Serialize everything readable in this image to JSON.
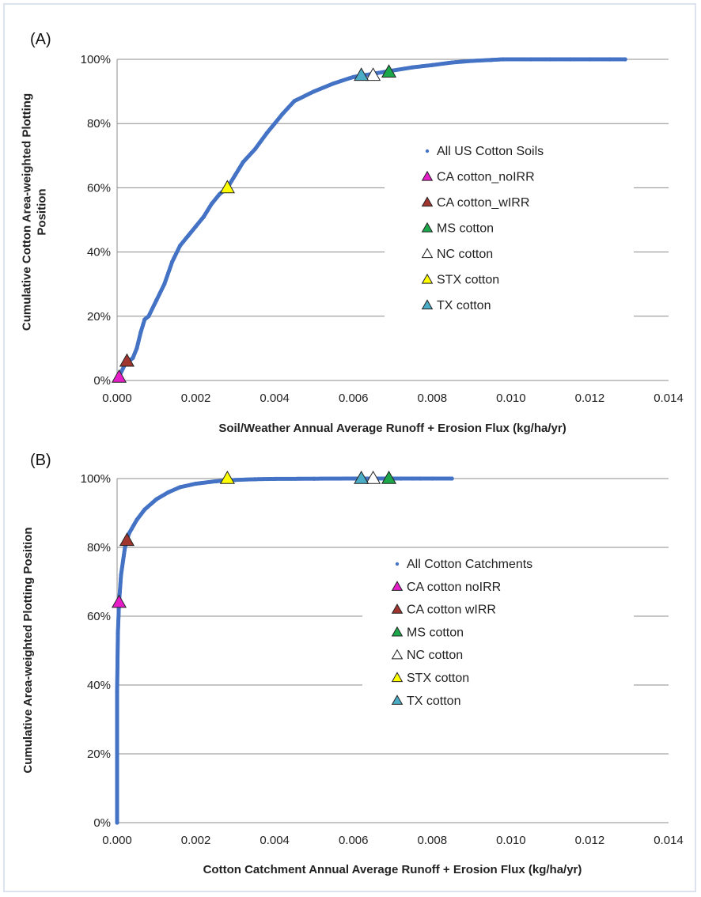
{
  "figure": {
    "panels": [
      "(A)",
      "(B)"
    ]
  },
  "chart_data": [
    {
      "panel_label": "(A)",
      "type": "scatter",
      "xlabel": "Soil/Weather Annual Average Runoff + Erosion Flux (kg/ha/yr)",
      "ylabel": "Cumulative Cotton Area-weighted Plotting Position",
      "xlim": [
        0,
        0.014
      ],
      "ylim": [
        0,
        1
      ],
      "x_ticks": [
        "0.000",
        "0.002",
        "0.004",
        "0.006",
        "0.008",
        "0.010",
        "0.012",
        "0.014"
      ],
      "y_ticks": [
        "0%",
        "20%",
        "40%",
        "60%",
        "80%",
        "100%"
      ],
      "grid": "horizontal",
      "legend": "right",
      "series": [
        {
          "name": "All US Cotton Soils",
          "marker": "dot",
          "color": "#4472c4",
          "x": [
            0.0,
            0.0002,
            0.0004,
            0.0005,
            0.0006,
            0.0007,
            0.0008,
            0.001,
            0.0012,
            0.0014,
            0.0016,
            0.0018,
            0.002,
            0.0022,
            0.0024,
            0.0026,
            0.0028,
            0.003,
            0.0032,
            0.0035,
            0.0038,
            0.004,
            0.0042,
            0.0045,
            0.005,
            0.0055,
            0.006,
            0.0065,
            0.007,
            0.0075,
            0.008,
            0.0085,
            0.009,
            0.0095,
            0.0098,
            0.0105,
            0.011,
            0.0115,
            0.012,
            0.0125,
            0.0129
          ],
          "y": [
            0.0,
            0.05,
            0.07,
            0.1,
            0.15,
            0.19,
            0.2,
            0.25,
            0.3,
            0.37,
            0.42,
            0.45,
            0.48,
            0.51,
            0.55,
            0.58,
            0.6,
            0.64,
            0.68,
            0.72,
            0.77,
            0.8,
            0.83,
            0.87,
            0.9,
            0.925,
            0.945,
            0.955,
            0.965,
            0.975,
            0.982,
            0.99,
            0.995,
            0.998,
            1.0,
            1.0,
            1.0,
            1.0,
            1.0,
            1.0,
            1.0
          ]
        },
        {
          "name": "CA cotton_noIRR",
          "marker": "triangle",
          "color": "#e61ec8",
          "x": [
            5e-05
          ],
          "y": [
            0.01
          ]
        },
        {
          "name": "CA cotton_wIRR",
          "marker": "triangle",
          "color": "#a0362f",
          "x": [
            0.00025
          ],
          "y": [
            0.06
          ]
        },
        {
          "name": "MS cotton",
          "marker": "triangle",
          "color": "#1ca84a",
          "x": [
            0.0069
          ],
          "y": [
            0.96
          ]
        },
        {
          "name": "NC cotton",
          "marker": "triangle",
          "color": "#ffffff",
          "x": [
            0.0065
          ],
          "y": [
            0.95
          ]
        },
        {
          "name": "STX cotton",
          "marker": "triangle",
          "color": "#ffff00",
          "x": [
            0.0028
          ],
          "y": [
            0.6
          ]
        },
        {
          "name": "TX cotton",
          "marker": "triangle",
          "color": "#4bacc6",
          "x": [
            0.0062
          ],
          "y": [
            0.95
          ]
        }
      ]
    },
    {
      "panel_label": "(B)",
      "type": "scatter",
      "xlabel": "Cotton Catchment Annual Average Runoff + Erosion Flux (kg/ha/yr)",
      "ylabel": "Cumulative Area-weighted Plotting Position",
      "xlim": [
        0,
        0.014
      ],
      "ylim": [
        0,
        1
      ],
      "x_ticks": [
        "0.000",
        "0.002",
        "0.004",
        "0.006",
        "0.008",
        "0.010",
        "0.012",
        "0.014"
      ],
      "y_ticks": [
        "0%",
        "20%",
        "40%",
        "60%",
        "80%",
        "100%"
      ],
      "grid": "horizontal",
      "legend": "right",
      "series": [
        {
          "name": "All Cotton Catchments",
          "marker": "dot",
          "color": "#4472c4",
          "x": [
            0.0,
            0.0,
            2e-05,
            5e-05,
            0.0001,
            0.0002,
            0.0003,
            0.0005,
            0.0007,
            0.001,
            0.0013,
            0.0016,
            0.002,
            0.0025,
            0.003,
            0.0035,
            0.004,
            0.005,
            0.006,
            0.0065,
            0.007,
            0.0072,
            0.0075,
            0.0077,
            0.008,
            0.0085
          ],
          "y": [
            0.0,
            0.38,
            0.55,
            0.64,
            0.72,
            0.8,
            0.84,
            0.88,
            0.91,
            0.94,
            0.96,
            0.975,
            0.985,
            0.992,
            0.996,
            0.998,
            0.999,
            0.9995,
            1.0,
            1.0,
            1.0,
            1.0,
            1.0,
            1.0,
            1.0,
            1.0
          ]
        },
        {
          "name": "CA cotton noIRR",
          "marker": "triangle",
          "color": "#e61ec8",
          "x": [
            5e-05
          ],
          "y": [
            0.64
          ]
        },
        {
          "name": "CA cotton wIRR",
          "marker": "triangle",
          "color": "#a0362f",
          "x": [
            0.00025
          ],
          "y": [
            0.82
          ]
        },
        {
          "name": "MS cotton",
          "marker": "triangle",
          "color": "#1ca84a",
          "x": [
            0.0069
          ],
          "y": [
            1.0
          ]
        },
        {
          "name": "NC cotton",
          "marker": "triangle",
          "color": "#ffffff",
          "x": [
            0.0065
          ],
          "y": [
            1.0
          ]
        },
        {
          "name": "STX cotton",
          "marker": "triangle",
          "color": "#ffff00",
          "x": [
            0.0028
          ],
          "y": [
            1.0
          ]
        },
        {
          "name": "TX cotton",
          "marker": "triangle",
          "color": "#4bacc6",
          "x": [
            0.0062
          ],
          "y": [
            1.0
          ]
        }
      ]
    }
  ]
}
